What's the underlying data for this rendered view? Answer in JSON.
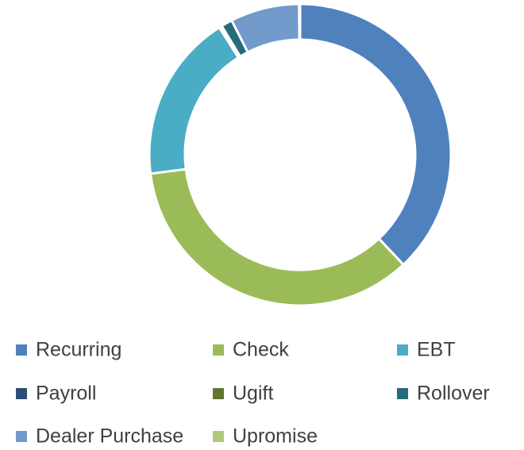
{
  "chart_data": {
    "type": "donut",
    "categories": [
      "Recurring",
      "Check",
      "EBT",
      "Payroll",
      "Ugift",
      "Rollover",
      "Dealer Purchase",
      "Upromise"
    ],
    "values": [
      38,
      35,
      18,
      0.2,
      0.1,
      1.2,
      7.4,
      0.1
    ],
    "colors": [
      "#4f81bd",
      "#9bbb59",
      "#4bacc6",
      "#2c4d75",
      "#5f7530",
      "#276a7c",
      "#729aca",
      "#afc97a"
    ],
    "legend": "bottom"
  }
}
